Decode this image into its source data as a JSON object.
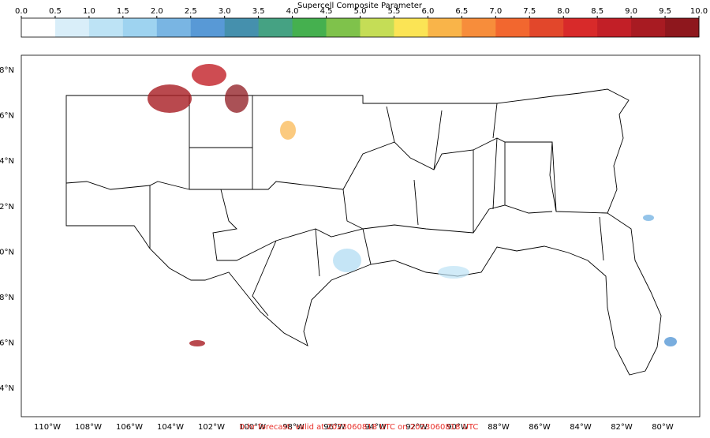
{
  "colorbar": {
    "title": "Supercell Composite Parameter",
    "ticks": [
      {
        "value": 0,
        "label": "0.0"
      },
      0.5,
      {
        "value": 1,
        "label": "1.0"
      },
      1.5,
      {
        "value": 2,
        "label": "2.0"
      },
      2.5,
      {
        "value": 3,
        "label": "3.0"
      },
      3.5,
      {
        "value": 4,
        "label": "4.0"
      },
      4.5,
      {
        "value": 5,
        "label": "5.0"
      },
      5.5,
      {
        "value": 6,
        "label": "6.0"
      },
      6.5,
      {
        "value": 7,
        "label": "7.0"
      },
      7.5,
      {
        "value": 8,
        "label": "8.0"
      },
      8.5,
      {
        "value": 9,
        "label": "9.0"
      },
      9.5,
      {
        "value": 10,
        "label": "10.0"
      }
    ],
    "range": [
      0,
      10
    ],
    "colors": [
      "#ffffff",
      "#d9eef9",
      "#bde3f5",
      "#9ed3f0",
      "#79b5e3",
      "#5899d6",
      "#4590ad",
      "#45a283",
      "#45b04f",
      "#7fc24b",
      "#c5dd56",
      "#fbe455",
      "#f9b449",
      "#f78d3b",
      "#f2672f",
      "#e2472b",
      "#d82a2a",
      "#c21f27",
      "#a81b22",
      "#8e171d"
    ]
  },
  "map": {
    "lat_labels": [
      "8°N",
      "6°N",
      "4°N",
      "2°N",
      "0°N",
      "8°N",
      "6°N",
      "4°N"
    ],
    "lon_labels": [
      "110°W",
      "108°W",
      "106°W",
      "104°W",
      "102°W",
      "100°W",
      "98°W",
      "96°W",
      "94°W",
      "92°W",
      "90°W",
      "88°W",
      "86°W",
      "84°W",
      "82°W",
      "80°W"
    ],
    "footer": "0-hr forecast, valid at 2023060818 UTC on 2023060818 UTC"
  }
}
